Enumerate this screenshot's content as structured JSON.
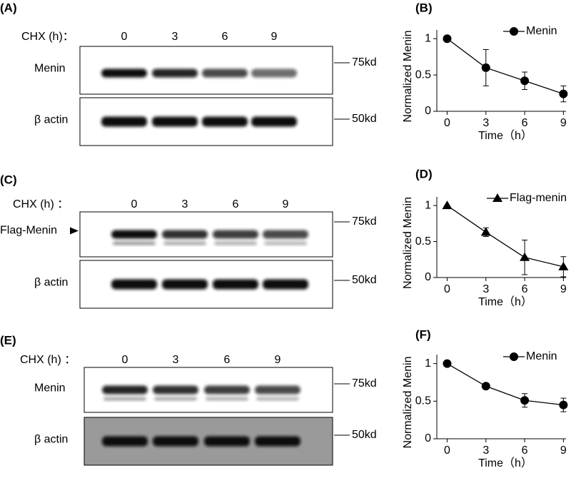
{
  "blots": [
    {
      "label": "(A)",
      "header": "CHX (h)：",
      "lanes": [
        "0",
        "3",
        "6",
        "9"
      ],
      "rows": [
        {
          "name": "Menin",
          "marker": "75kd"
        },
        {
          "name": "β actin",
          "marker": "50kd"
        }
      ]
    },
    {
      "label": "(C)",
      "header": "CHX (h) ：",
      "lanes": [
        "0",
        "3",
        "6",
        "9"
      ],
      "rows": [
        {
          "name": "Flag-Menin",
          "marker": "75kd"
        },
        {
          "name": "β actin",
          "marker": "50kd"
        }
      ]
    },
    {
      "label": "(E)",
      "header": "CHX (h) ：",
      "lanes": [
        "0",
        "3",
        "6",
        "9"
      ],
      "rows": [
        {
          "name": "Menin",
          "marker": "75kd"
        },
        {
          "name": "β actin",
          "marker": "50kd"
        }
      ]
    }
  ],
  "chart_data": [
    {
      "type": "line",
      "title": "(B)",
      "xlabel": "Time（h）",
      "ylabel": "Normalized Menin",
      "x": [
        0,
        3,
        6,
        9
      ],
      "series": [
        {
          "name": "Menin",
          "color": "#000000",
          "marker": "circle",
          "values": [
            1,
            0.6,
            0.42,
            0.24
          ],
          "errors": [
            0,
            0.25,
            0.12,
            0.11
          ]
        }
      ],
      "xlim": [
        -0.8,
        9.2
      ],
      "ylim": [
        0,
        1.12
      ],
      "xticks": [
        0,
        3,
        6,
        9
      ],
      "yticks": [
        0,
        0.5,
        1
      ],
      "legend": "upper right"
    },
    {
      "type": "line",
      "title": "(D)",
      "xlabel": "Time（h）",
      "ylabel": "Normalized Menin",
      "x": [
        0,
        3,
        6,
        9
      ],
      "series": [
        {
          "name": "Flag-menin",
          "color": "#000000",
          "marker": "triangle",
          "values": [
            1,
            0.63,
            0.28,
            0.15
          ],
          "errors": [
            0,
            0.06,
            0.24,
            0.14
          ]
        }
      ],
      "xlim": [
        -0.8,
        9.2
      ],
      "ylim": [
        0,
        1.12
      ],
      "xticks": [
        0,
        3,
        6,
        9
      ],
      "yticks": [
        0,
        0.5,
        1
      ],
      "legend": "upper right"
    },
    {
      "type": "line",
      "title": "(F)",
      "xlabel": "Time（h）",
      "ylabel": "Normalized Menin",
      "x": [
        0,
        3,
        6,
        9
      ],
      "series": [
        {
          "name": "Menin",
          "color": "#000000",
          "marker": "circle",
          "values": [
            1,
            0.7,
            0.51,
            0.45
          ],
          "errors": [
            0,
            0.02,
            0.09,
            0.09
          ]
        }
      ],
      "xlim": [
        -0.8,
        9.2
      ],
      "ylim": [
        0,
        1.12
      ],
      "xticks": [
        0,
        3,
        6,
        9
      ],
      "yticks": [
        0,
        0.5,
        1
      ],
      "legend": "upper right"
    }
  ]
}
